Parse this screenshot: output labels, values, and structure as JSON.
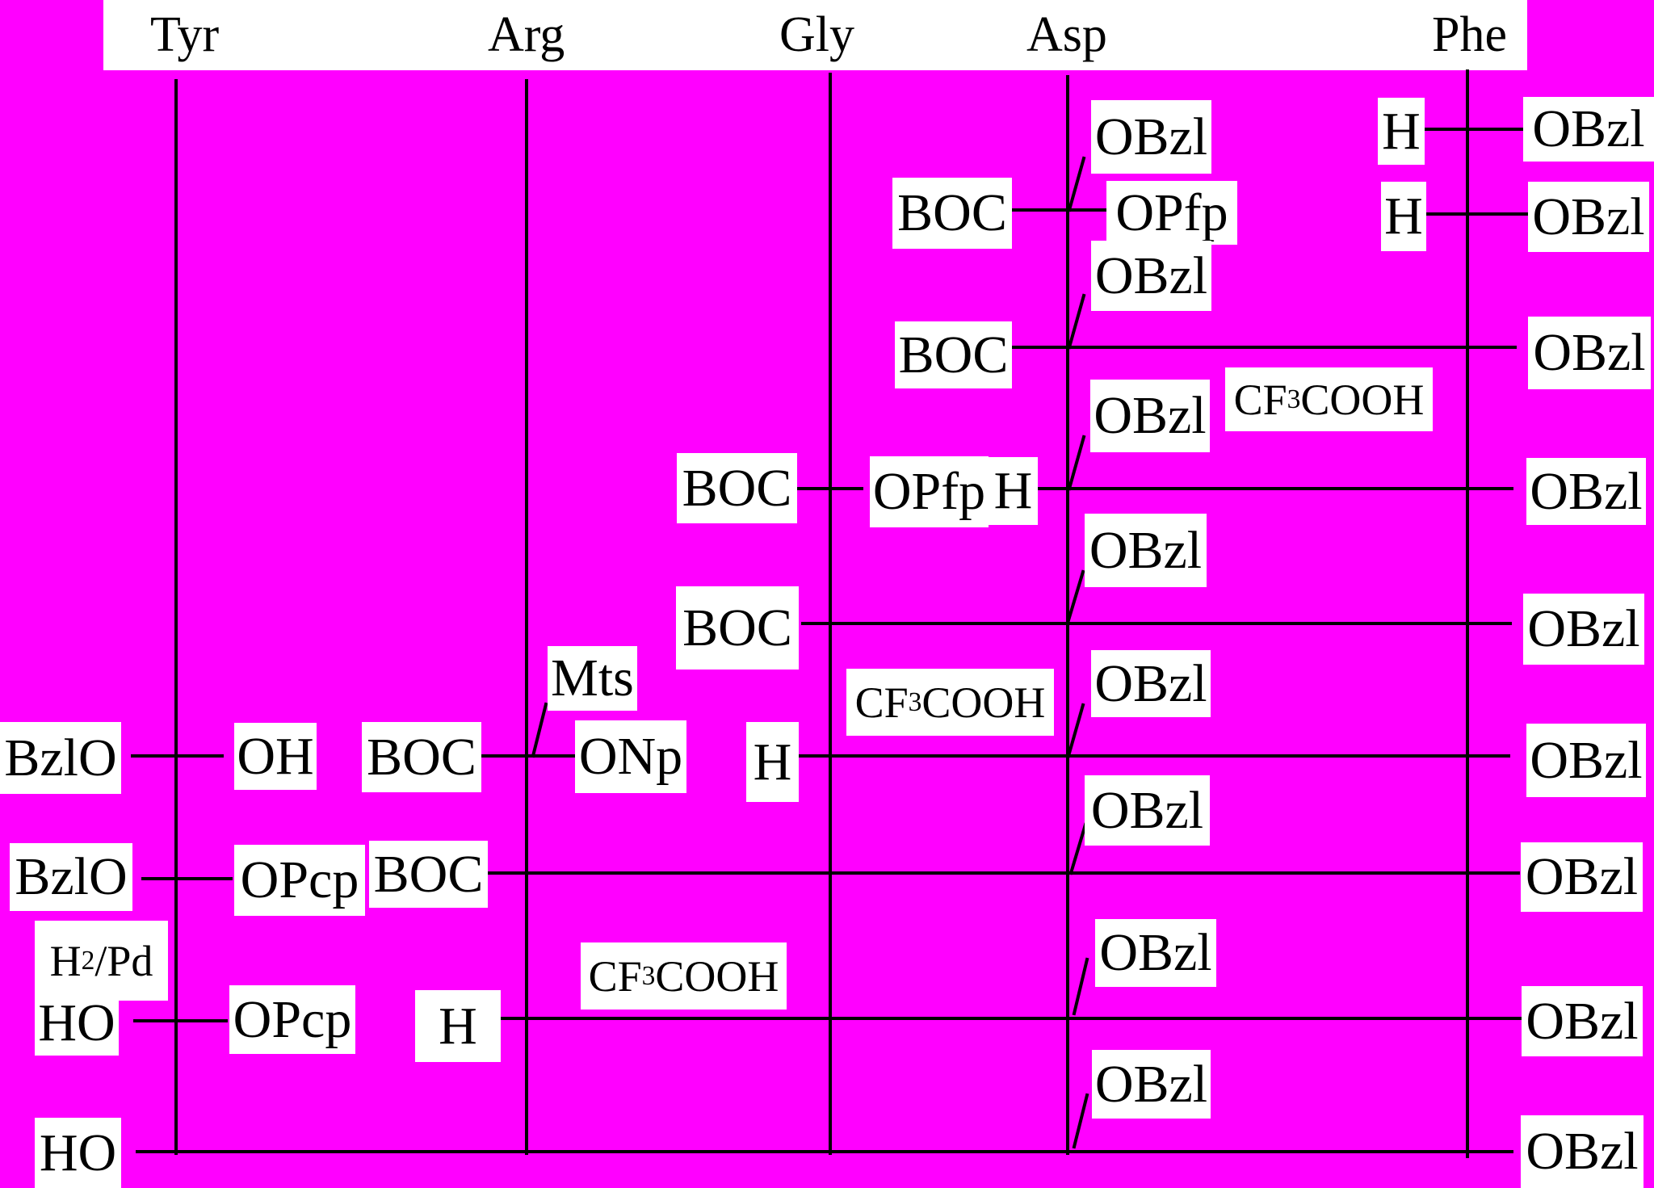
{
  "header": {
    "residues": [
      "Tyr",
      "Arg",
      "Gly",
      "Asp",
      "Phe"
    ]
  },
  "protecting_groups": {
    "benzyl_ester": "OBzl",
    "boc": "BOC",
    "pfp_ester": "OPfp",
    "free_amine": "H",
    "benzyl_ether": "BzlO",
    "free_acid": "OH",
    "mesityl_sulfonyl": "Mts",
    "np_ester": "ONp",
    "pcp_ester": "OPcp",
    "free_phenol": "HO"
  },
  "reagents": {
    "tfa": {
      "pre": "CF",
      "sub": "3",
      "post": "COOH"
    },
    "hydrogenolysis": {
      "pre": "H",
      "sub": "2",
      "post": " /Pd"
    }
  }
}
